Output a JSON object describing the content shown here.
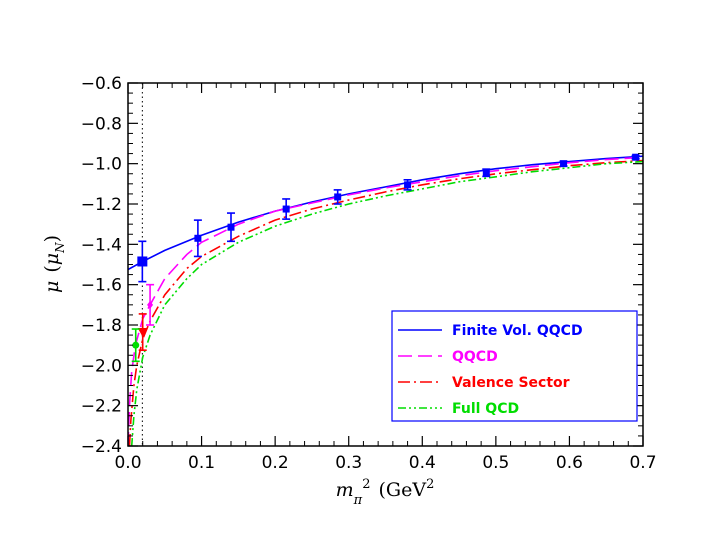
{
  "chart_data": {
    "type": "line",
    "title": "",
    "xlabel": "m_π² (GeV²)",
    "xlabel_parts": {
      "symbol": "m",
      "subscript": "π",
      "superscript": "2",
      "unit": "(GeV",
      "unit_sup": "2",
      "unit_close": ")"
    },
    "ylabel": "μ (μ_N)",
    "ylabel_parts": {
      "symbol": "μ",
      "open": "(",
      "inner": "μ",
      "subscript": "N",
      "close": ")"
    },
    "xlim": [
      0.0,
      0.7
    ],
    "ylim": [
      -2.4,
      -0.6
    ],
    "xticks": [
      "0.0",
      "0.1",
      "0.2",
      "0.3",
      "0.4",
      "0.5",
      "0.6",
      "0.7"
    ],
    "yticks": [
      "-0.6",
      "-0.8",
      "-1.0",
      "-1.2",
      "-1.4",
      "-1.6",
      "-1.8",
      "-2.0",
      "-2.2",
      "-2.4"
    ],
    "physical_point_x": 0.0195,
    "legend_position": "lower-right",
    "colors": {
      "finite": "#0000ff",
      "qqcd": "#ff00ff",
      "valence": "#ff0000",
      "full": "#00dd00"
    },
    "series": [
      {
        "name": "Finite Vol. QQCD",
        "style": "solid",
        "color": "#0000ff",
        "x": [
          0.0,
          0.02,
          0.05,
          0.1,
          0.15,
          0.2,
          0.25,
          0.3,
          0.35,
          0.4,
          0.45,
          0.5,
          0.55,
          0.6,
          0.65,
          0.7
        ],
        "y": [
          -1.525,
          -1.485,
          -1.43,
          -1.355,
          -1.29,
          -1.235,
          -1.19,
          -1.15,
          -1.115,
          -1.08,
          -1.05,
          -1.025,
          -1.005,
          -0.99,
          -0.975,
          -0.963
        ]
      },
      {
        "name": "QQCD",
        "style": "dashed",
        "color": "#ff00ff",
        "x": [
          0.0,
          0.002,
          0.005,
          0.01,
          0.02,
          0.03,
          0.05,
          0.08,
          0.1,
          0.15,
          0.2,
          0.25,
          0.3,
          0.35,
          0.4,
          0.45,
          0.5,
          0.55,
          0.6,
          0.65,
          0.7
        ],
        "y": [
          -2.4,
          -2.2,
          -2.03,
          -1.9,
          -1.77,
          -1.7,
          -1.57,
          -1.45,
          -1.39,
          -1.3,
          -1.235,
          -1.195,
          -1.155,
          -1.12,
          -1.09,
          -1.06,
          -1.035,
          -1.015,
          -0.995,
          -0.98,
          -0.968
        ]
      },
      {
        "name": "Valence Sector",
        "style": "dashdot",
        "color": "#ff0000",
        "x": [
          0.002,
          0.004,
          0.008,
          0.012,
          0.02,
          0.03,
          0.05,
          0.08,
          0.1,
          0.15,
          0.2,
          0.25,
          0.3,
          0.35,
          0.4,
          0.45,
          0.5,
          0.55,
          0.6,
          0.65,
          0.7
        ],
        "y": [
          -2.4,
          -2.27,
          -2.1,
          -2.0,
          -1.87,
          -1.78,
          -1.65,
          -1.52,
          -1.46,
          -1.36,
          -1.28,
          -1.225,
          -1.18,
          -1.14,
          -1.105,
          -1.075,
          -1.05,
          -1.03,
          -1.01,
          -0.995,
          -0.985
        ]
      },
      {
        "name": "Full QCD",
        "style": "dashdotdot",
        "color": "#00dd00",
        "x": [
          0.005,
          0.008,
          0.012,
          0.02,
          0.03,
          0.05,
          0.08,
          0.1,
          0.15,
          0.2,
          0.25,
          0.3,
          0.35,
          0.4,
          0.45,
          0.5,
          0.55,
          0.6,
          0.65,
          0.7
        ],
        "y": [
          -2.4,
          -2.25,
          -2.12,
          -1.96,
          -1.85,
          -1.7,
          -1.57,
          -1.5,
          -1.39,
          -1.31,
          -1.25,
          -1.2,
          -1.16,
          -1.125,
          -1.09,
          -1.065,
          -1.04,
          -1.02,
          -1.0,
          -0.99
        ]
      }
    ],
    "points": [
      {
        "series": "Finite Vol. QQCD",
        "marker": "square-large",
        "color": "#0000ff",
        "x": 0.0195,
        "y": -1.485,
        "err": 0.1
      },
      {
        "series": "Finite Vol. QQCD",
        "marker": "square",
        "color": "#0000ff",
        "x": 0.095,
        "y": -1.37,
        "err": 0.09
      },
      {
        "series": "Finite Vol. QQCD",
        "marker": "square",
        "color": "#0000ff",
        "x": 0.14,
        "y": -1.315,
        "err": 0.07
      },
      {
        "series": "Finite Vol. QQCD",
        "marker": "square",
        "color": "#0000ff",
        "x": 0.215,
        "y": -1.225,
        "err": 0.05
      },
      {
        "series": "Finite Vol. QQCD",
        "marker": "square",
        "color": "#0000ff",
        "x": 0.285,
        "y": -1.165,
        "err": 0.035
      },
      {
        "series": "Finite Vol. QQCD",
        "marker": "square",
        "color": "#0000ff",
        "x": 0.38,
        "y": -1.105,
        "err": 0.025
      },
      {
        "series": "Finite Vol. QQCD",
        "marker": "square",
        "color": "#0000ff",
        "x": 0.487,
        "y": -1.045,
        "err": 0.018
      },
      {
        "series": "Finite Vol. QQCD",
        "marker": "square",
        "color": "#0000ff",
        "x": 0.592,
        "y": -1.0,
        "err": 0.012
      },
      {
        "series": "Finite Vol. QQCD",
        "marker": "square",
        "color": "#0000ff",
        "x": 0.69,
        "y": -0.968,
        "err": 0.008
      },
      {
        "series": "QQCD",
        "marker": "diamond",
        "color": "#ff00ff",
        "x": 0.03,
        "y": -1.7,
        "err": 0.1
      },
      {
        "series": "Valence Sector",
        "marker": "triangle-down",
        "color": "#ff0000",
        "x": 0.02,
        "y": -1.835,
        "err": 0.09
      },
      {
        "series": "Full QCD",
        "marker": "circle",
        "color": "#00dd00",
        "x": 0.0105,
        "y": -1.9,
        "err": 0.08
      }
    ]
  }
}
